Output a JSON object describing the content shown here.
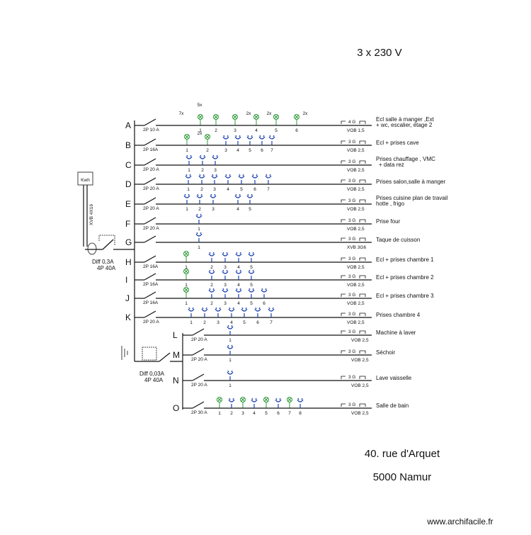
{
  "header": {
    "voltage": "3 x 230 V"
  },
  "supply": {
    "meter": "Kwh",
    "cable": "XVB 4X16"
  },
  "diff_main": {
    "name": "Diff 0,3A",
    "rating": "4P  40A"
  },
  "diff_sensitive": {
    "name": "Diff 0,03A",
    "rating": "4P  40A"
  },
  "circuits": [
    {
      "letter": "A",
      "breaker": "2P 10 A",
      "description": [
        "Ecl salle à manger ,Ext",
        "+ wc, escalier, étage 2"
      ],
      "conductor": "4 G",
      "cable": "VOB 1,5",
      "points": [
        1,
        2,
        3,
        4,
        5,
        6
      ],
      "multipliers": [
        "7x",
        "5x",
        "2x",
        "2x",
        "2x"
      ]
    },
    {
      "letter": "B",
      "breaker": "2P 16A",
      "description": [
        "Ecl + prises cave"
      ],
      "conductor": "3 G",
      "cable": "VOB 2,5",
      "points": [
        1,
        2,
        3,
        4,
        5,
        6,
        7
      ],
      "multipliers": [
        "2x"
      ]
    },
    {
      "letter": "C",
      "breaker": "2P 20 A",
      "description": [
        "Prises  chauffage , VMC",
        "+ data rez"
      ],
      "conductor": "3 G",
      "cable": "VOB 2,5",
      "points": [
        1,
        2,
        3
      ]
    },
    {
      "letter": "D",
      "breaker": "2P 20 A",
      "description": [
        "Prises salon,salle à manger"
      ],
      "conductor": "3 G",
      "cable": "VOB 2,5",
      "points": [
        1,
        2,
        3,
        4,
        5,
        6,
        7
      ]
    },
    {
      "letter": "E",
      "breaker": "2P 20 A",
      "description": [
        "Prises cuisine plan de travail",
        "hotte , frigo"
      ],
      "conductor": "3 G",
      "cable": "VOB 2,5",
      "points": [
        1,
        2,
        3,
        4,
        5
      ]
    },
    {
      "letter": "F",
      "breaker": "2P 20 A",
      "description": [
        "Prise  four"
      ],
      "conductor": "3 G",
      "cable": "VOB 2,5",
      "points": [
        1
      ]
    },
    {
      "letter": "G",
      "description": [
        "Taque de cuisson"
      ],
      "conductor": "3 G",
      "cable": "XVB 3G6",
      "points": [
        1
      ]
    },
    {
      "letter": "H",
      "breaker": "2P 16A",
      "description": [
        "Ecl + prises chambre 1"
      ],
      "conductor": "3 G",
      "cable": "VOB 2,5",
      "points": [
        1,
        2,
        3,
        4,
        5
      ]
    },
    {
      "letter": "I",
      "breaker": "2P 16A",
      "description": [
        "Ecl + prises chambre 2"
      ],
      "conductor": "3 G",
      "cable": "VOB 2,5",
      "points": [
        1,
        2,
        3,
        4,
        5
      ]
    },
    {
      "letter": "J",
      "breaker": "2P 16A",
      "description": [
        "Ecl + prises chambre 3"
      ],
      "conductor": "3 G",
      "cable": "VOB 2,5",
      "points": [
        1,
        2,
        3,
        4,
        5,
        6
      ]
    },
    {
      "letter": "K",
      "breaker": "2P 20 A",
      "description": [
        "Prises chambre 4"
      ],
      "conductor": "3 G",
      "cable": "VOB 2,5",
      "points": [
        1,
        2,
        3,
        4,
        5,
        6,
        7
      ]
    },
    {
      "letter": "L",
      "breaker": "2P  20 A",
      "description": [
        "Machine à laver"
      ],
      "conductor": "3 G",
      "cable": "VOB 2,5",
      "points": [
        1
      ]
    },
    {
      "letter": "M",
      "breaker": "2P  20 A",
      "description": [
        "Séchoir"
      ],
      "conductor": "3 G",
      "cable": "VOB 2,5",
      "points": [
        1
      ]
    },
    {
      "letter": "N",
      "breaker": "2P  20 A",
      "description": [
        "Lave vaisselle"
      ],
      "conductor": "3 G",
      "cable": "VOB 2,5",
      "points": [
        1
      ]
    },
    {
      "letter": "O",
      "breaker": "2P  30 A",
      "description": [
        "Salle de bain"
      ],
      "conductor": "3 G",
      "cable": "VOB 2,5",
      "points": [
        1,
        2,
        3,
        4,
        5,
        6,
        7,
        8
      ]
    }
  ],
  "address": {
    "street": "40. rue d'Arquet",
    "city": "5000 Namur"
  },
  "footer": "www.archifacile.fr"
}
